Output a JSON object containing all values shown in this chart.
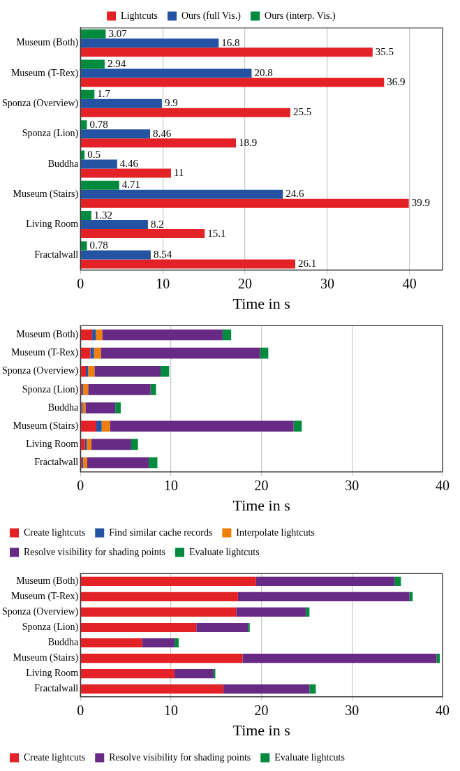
{
  "chart_data": [
    {
      "type": "bar",
      "orientation": "horizontal",
      "xlabel": "Time in s",
      "categories": [
        "Museum (Both)",
        "Museum (T-Rex)",
        "Sponza (Overview)",
        "Sponza (Lion)",
        "Buddha",
        "Museum (Stairs)",
        "Living Room",
        "Fractalwall"
      ],
      "series": [
        {
          "name": "Lightcuts",
          "color": "#e32228",
          "values": [
            35.5,
            36.9,
            25.5,
            18.9,
            11,
            39.9,
            15.1,
            26.1
          ]
        },
        {
          "name": "Ours (full Vis.)",
          "color": "#2453a3",
          "values": [
            16.8,
            20.8,
            9.9,
            8.46,
            4.46,
            24.6,
            8.2,
            8.54
          ]
        },
        {
          "name": "Ours (interp. Vis.)",
          "color": "#008a3e",
          "values": [
            3.07,
            2.94,
            1.7,
            0.78,
            0.5,
            4.71,
            1.32,
            0.78
          ]
        }
      ],
      "xlim": [
        0,
        44
      ],
      "xticks": [
        0,
        10,
        20,
        30,
        40
      ],
      "grid": "x",
      "legend": "top",
      "data_labels": true
    },
    {
      "type": "bar",
      "orientation": "horizontal",
      "stacked": true,
      "xlabel": "Time in s",
      "categories": [
        "Museum (Both)",
        "Museum (T-Rex)",
        "Sponza (Overview)",
        "Sponza (Lion)",
        "Buddha",
        "Museum (Stairs)",
        "Living Room",
        "Fractalwall"
      ],
      "series": [
        {
          "name": "Create lightcuts",
          "color": "#e32228",
          "values": [
            1.3,
            1.1,
            0.6,
            0.15,
            0.1,
            1.75,
            0.5,
            0.15
          ]
        },
        {
          "name": "Find similar cache records",
          "color": "#2453a3",
          "values": [
            0.4,
            0.4,
            0.25,
            0.15,
            0.15,
            0.6,
            0.2,
            0.15
          ]
        },
        {
          "name": "Interpolate lightcuts",
          "color": "#f07f0a",
          "values": [
            0.7,
            0.75,
            0.7,
            0.55,
            0.3,
            0.9,
            0.5,
            0.45
          ]
        },
        {
          "name": "Resolve visibility for shading points",
          "color": "#672a85",
          "values": [
            13.3,
            17.6,
            7.3,
            6.9,
            3.3,
            20.3,
            4.4,
            6.8
          ]
        },
        {
          "name": "Evaluate lightcuts",
          "color": "#008a3e",
          "values": [
            0.95,
            0.9,
            0.95,
            0.6,
            0.6,
            0.9,
            0.75,
            0.95
          ]
        }
      ],
      "xlim": [
        0,
        40
      ],
      "xticks": [
        0,
        10,
        20,
        30,
        40
      ],
      "grid": "x",
      "legend": "bottom"
    },
    {
      "type": "bar",
      "orientation": "horizontal",
      "stacked": true,
      "xlabel": "Time in s",
      "categories": [
        "Museum (Both)",
        "Museum (T-Rex)",
        "Sponza (Overview)",
        "Sponza (Lion)",
        "Buddha",
        "Museum (Stairs)",
        "Living Room",
        "Fractalwall"
      ],
      "series": [
        {
          "name": "Create lightcuts",
          "color": "#e32228",
          "values": [
            19.4,
            17.4,
            17.2,
            12.8,
            6.8,
            17.9,
            10.4,
            15.8
          ]
        },
        {
          "name": "Resolve visibility for shading points",
          "color": "#672a85",
          "values": [
            15.3,
            18.95,
            7.7,
            5.7,
            3.6,
            21.45,
            4.3,
            9.5
          ]
        },
        {
          "name": "Evaluate lightcuts",
          "color": "#008a3e",
          "values": [
            0.7,
            0.35,
            0.4,
            0.2,
            0.45,
            0.35,
            0.2,
            0.7
          ]
        }
      ],
      "xlim": [
        0,
        40
      ],
      "xticks": [
        0,
        10,
        20,
        30,
        40
      ],
      "grid": "x",
      "legend": "bottom"
    }
  ]
}
